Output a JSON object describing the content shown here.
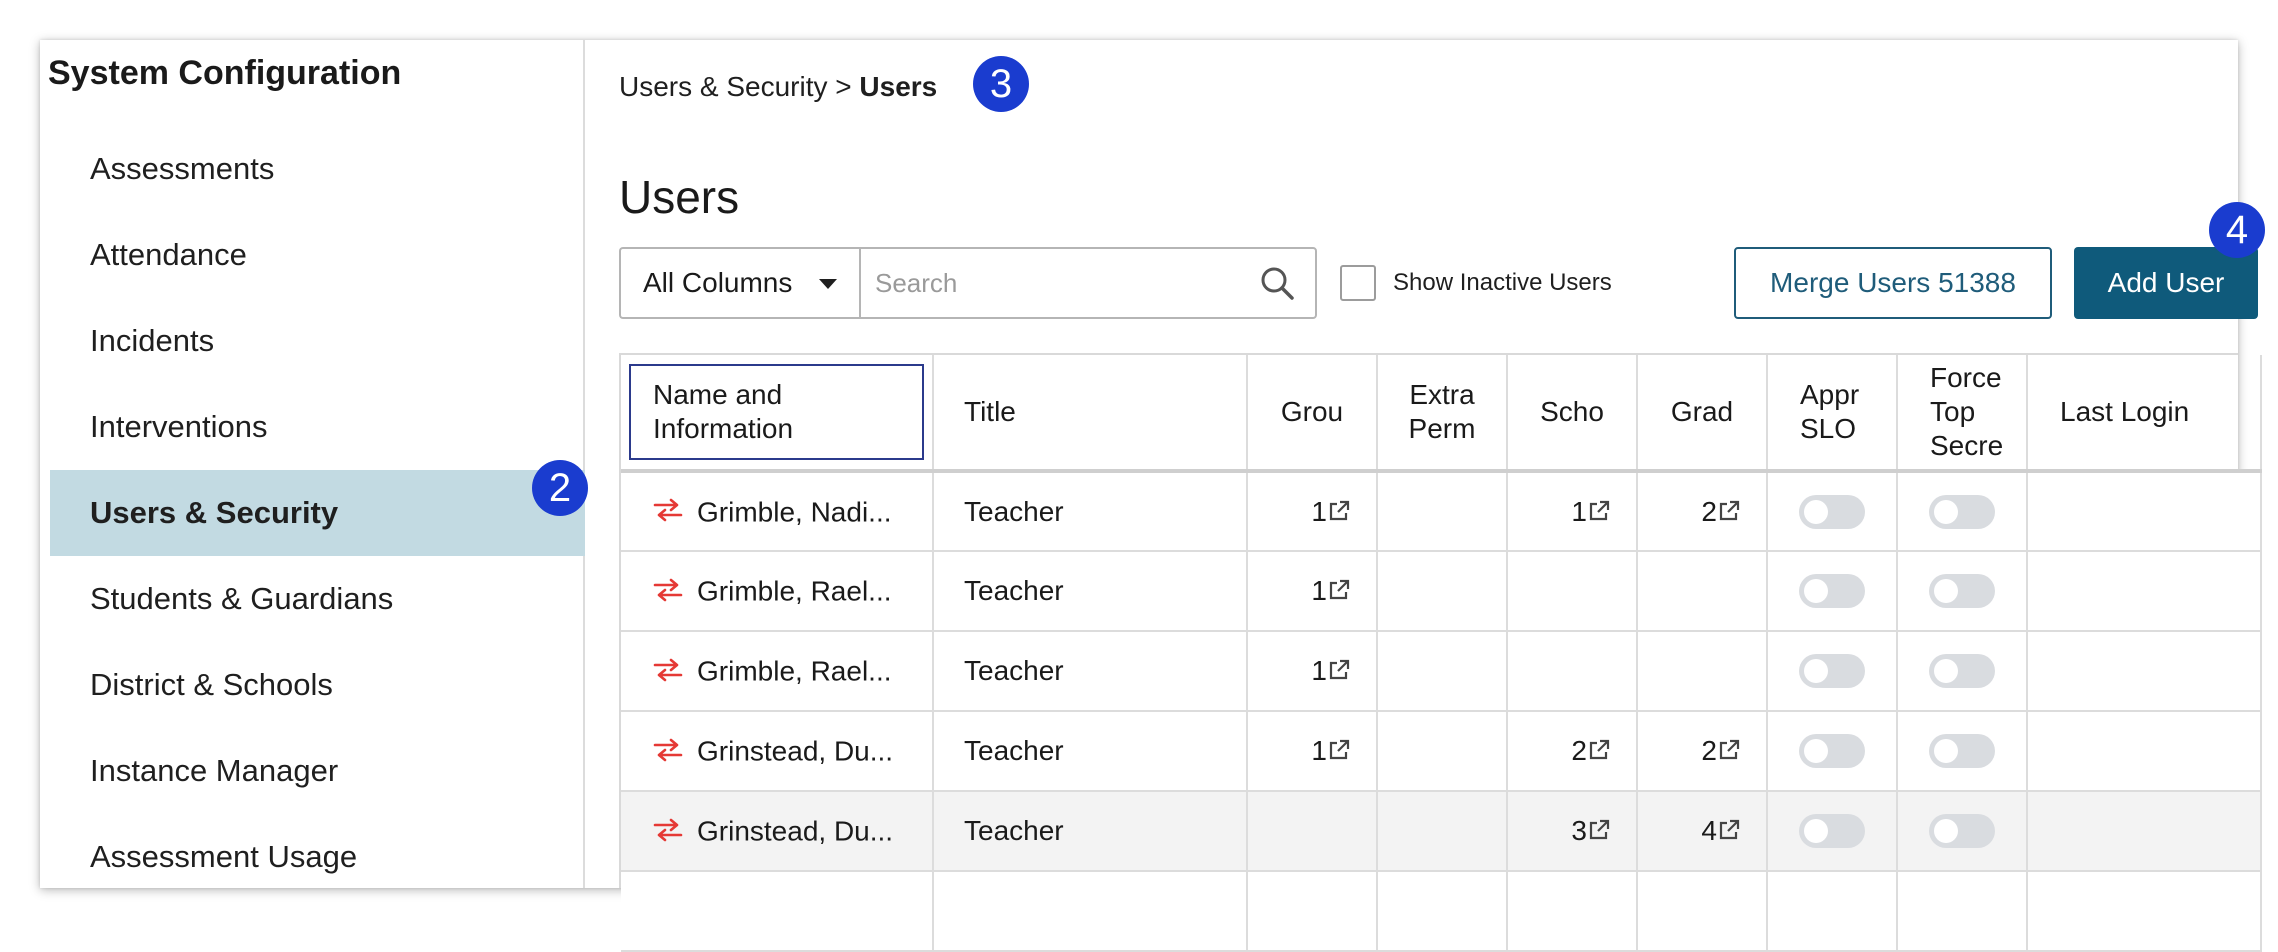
{
  "sidebar": {
    "title": "System Configuration",
    "items": [
      {
        "label": "Assessments"
      },
      {
        "label": "Attendance"
      },
      {
        "label": "Incidents"
      },
      {
        "label": "Interventions"
      },
      {
        "label": "Users & Security",
        "active": true
      },
      {
        "label": "Students & Guardians"
      },
      {
        "label": "District & Schools"
      },
      {
        "label": "Instance Manager"
      },
      {
        "label": "Assessment Usage"
      }
    ]
  },
  "breadcrumb": {
    "parent": "Users & Security",
    "separator": ">",
    "current": "Users"
  },
  "badges": {
    "sidebar_badge": "2",
    "breadcrumb_badge": "3",
    "add_user_badge": "4"
  },
  "page": {
    "title": "Users"
  },
  "toolbar": {
    "column_select_value": "All Columns",
    "search_placeholder": "Search",
    "show_inactive_label": "Show Inactive Users",
    "show_inactive_checked": false,
    "merge_label": "Merge Users 51388",
    "add_label": "Add User"
  },
  "table": {
    "columns": [
      "Name and Information",
      "Title",
      "Grou",
      "Extra Perm",
      "Scho",
      "Grad",
      "Appr SLO",
      "Force Top Secre",
      "Last Login"
    ],
    "rows": [
      {
        "name": "Grimble, Nadi...",
        "title": "Teacher",
        "groups": "1",
        "extra": "",
        "schools": "1",
        "grades": "2",
        "appr_slo": false,
        "force_top_secret": false,
        "last_login": ""
      },
      {
        "name": "Grimble, Rael...",
        "title": "Teacher",
        "groups": "1",
        "extra": "",
        "schools": "",
        "grades": "",
        "appr_slo": false,
        "force_top_secret": false,
        "last_login": ""
      },
      {
        "name": "Grimble, Rael...",
        "title": "Teacher",
        "groups": "1",
        "extra": "",
        "schools": "",
        "grades": "",
        "appr_slo": false,
        "force_top_secret": false,
        "last_login": ""
      },
      {
        "name": "Grinstead, Du...",
        "title": "Teacher",
        "groups": "1",
        "extra": "",
        "schools": "2",
        "grades": "2",
        "appr_slo": false,
        "force_top_secret": false,
        "last_login": ""
      },
      {
        "name": "Grinstead, Du...",
        "title": "Teacher",
        "groups": "",
        "extra": "",
        "schools": "3",
        "grades": "4",
        "appr_slo": false,
        "force_top_secret": false,
        "last_login": ""
      }
    ]
  },
  "colors": {
    "accent": "#0f5a7b",
    "active_nav_bg": "#c2dae2",
    "badge": "#1a3ccf",
    "swap_icon": "#e53935",
    "toggle_off": "#d9dce0"
  },
  "icons": {
    "search": "search-icon",
    "caret": "chevron-down-icon",
    "row_action": "swap-arrows-icon",
    "link_out": "external-link-icon"
  }
}
